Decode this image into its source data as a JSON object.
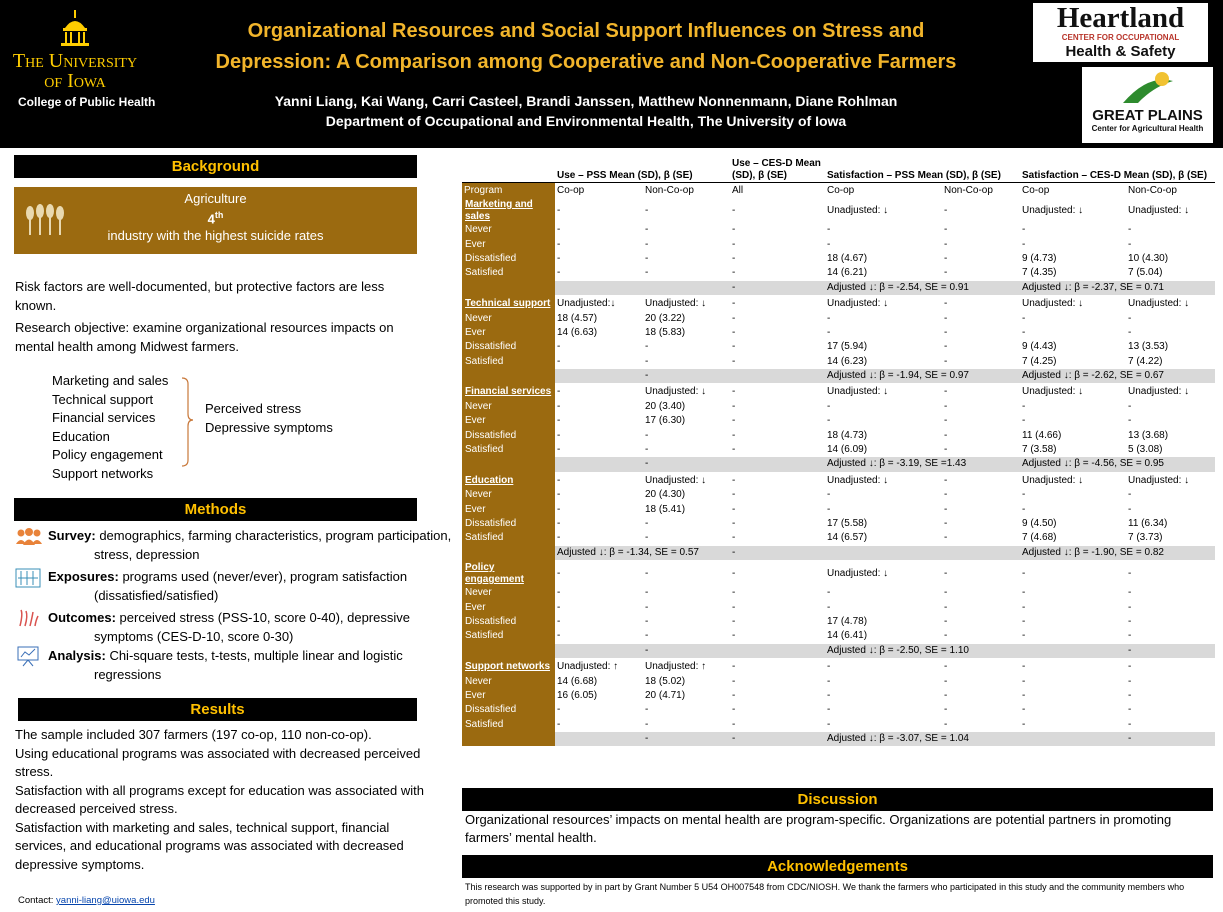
{
  "header": {
    "university_line1": "The University",
    "university_line2": "of Iowa",
    "college": "College of Public Health",
    "title_lines": [
      "Organizational Resources and Social Support Influences on Stress and",
      "Depression: A Comparison among Cooperative and Non-Cooperative Farmers"
    ],
    "authors": "Yanni Liang, Kai Wang, Carri Casteel, Brandi Janssen, Matthew Nonnenmann, Diane Rohlman",
    "affiliation": "Department of Occupational and Environmental Health, The University of Iowa",
    "heartland": {
      "name": "Heartland",
      "subtitle": "CENTER FOR OCCUPATIONAL",
      "tagline": "Health & Safety"
    },
    "great_plains": {
      "name": "GREAT PLAINS",
      "subtitle": "Center for Agricultural Health"
    }
  },
  "background": {
    "heading": "Background",
    "sector": "Agriculture",
    "rank": "4",
    "rank_suffix": "th",
    "fact": "industry with the highest suicide rates",
    "paragraphs": [
      "Risk factors are well-documented, but protective factors are less known.",
      "Research objective: examine organizational resources impacts on mental health among Midwest farmers."
    ],
    "exposures": [
      "Marketing and sales",
      "Technical support",
      "Financial services",
      "Education",
      "Policy engagement",
      "Support networks"
    ],
    "outcomes": [
      "Perceived stress",
      "Depressive symptoms"
    ]
  },
  "methods": {
    "heading": "Methods",
    "items": [
      {
        "label": "Survey:",
        "text": "demographics, farming characteristics, program participation, stress, depression"
      },
      {
        "label": "Exposures:",
        "text": "programs used (never/ever), program satisfaction (dissatisfied/satisfied)"
      },
      {
        "label": "Outcomes:",
        "text": "perceived stress (PSS-10, score 0-40), depressive symptoms (CES-D-10, score 0-30)"
      },
      {
        "label": "Analysis:",
        "text": "Chi-square tests, t-tests, multiple linear and logistic regressions"
      }
    ]
  },
  "results": {
    "heading": "Results",
    "paragraphs": [
      "The sample included 307 farmers (197 co-op, 110 non-co-op).",
      "Using educational programs was associated with decreased perceived stress.",
      "Satisfaction with all programs except for education was associated with decreased perceived stress.",
      "Satisfaction with marketing and sales, technical support, financial services, and educational programs was associated with decreased depressive symptoms."
    ]
  },
  "contact": {
    "label": "Contact:",
    "email": "yanni-liang@uiowa.edu"
  },
  "table": {
    "group_headers": [
      "Use – PSS Mean (SD), β (SE)",
      "Use – CES-D Mean (SD), β (SE)",
      "Satisfaction – PSS Mean (SD), β (SE)",
      "Satisfaction – CES-D Mean (SD), β (SE)"
    ],
    "columns": [
      "Program",
      "Co-op",
      "Non-Co-op",
      "All",
      "Co-op",
      "Non-Co-op",
      "Co-op",
      "Non-Co-op"
    ],
    "sections": [
      {
        "rows": [
          [
            "Marketing and sales",
            "-",
            "-",
            "-",
            "Unadjusted: ↓",
            "-",
            "Unadjusted: ↓",
            "Unadjusted: ↓"
          ],
          [
            "Never",
            "-",
            "-",
            "-",
            "-",
            "-",
            "-",
            "-"
          ],
          [
            "Ever",
            "-",
            "-",
            "-",
            "-",
            "-",
            "-",
            "-"
          ],
          [
            "Dissatisfied",
            "-",
            "-",
            "-",
            "18 (4.67)",
            "-",
            "9 (4.73)",
            "10 (4.30)"
          ],
          [
            "Satisfied",
            "-",
            "-",
            "-",
            "14 (6.21)",
            "-",
            "7 (4.35)",
            "7 (5.04)"
          ],
          [
            null,
            null,
            null,
            "-",
            "Adjusted ↓: β = -2.54, SE = 0.91",
            null,
            "Adjusted ↓: β = -2.37, SE = 0.71",
            null
          ]
        ]
      },
      {
        "rows": [
          [
            "Technical support",
            "Unadjusted:↓",
            "Unadjusted: ↓",
            "-",
            "Unadjusted: ↓",
            "-",
            "Unadjusted: ↓",
            "Unadjusted: ↓"
          ],
          [
            "Never",
            "18 (4.57)",
            "20 (3.22)",
            "-",
            "-",
            "-",
            "-",
            "-"
          ],
          [
            "Ever",
            "14 (6.63)",
            "18 (5.83)",
            "-",
            "-",
            "-",
            "-",
            "-"
          ],
          [
            "Dissatisfied",
            "-",
            "-",
            "-",
            "17 (5.94)",
            "-",
            "9 (4.43)",
            "13 (3.53)"
          ],
          [
            "Satisfied",
            "-",
            "-",
            "-",
            "14 (6.23)",
            "-",
            "7 (4.25)",
            "7 (4.22)"
          ],
          [
            null,
            null,
            "-",
            null,
            "Adjusted ↓: β = -1.94, SE = 0.97",
            null,
            "Adjusted ↓: β = -2.62, SE = 0.67",
            null
          ]
        ]
      },
      {
        "rows": [
          [
            "Financial services",
            "-",
            "Unadjusted: ↓",
            "-",
            "Unadjusted: ↓",
            "-",
            "Unadjusted: ↓",
            "Unadjusted: ↓"
          ],
          [
            "Never",
            "-",
            "20 (3.40)",
            "-",
            "-",
            "-",
            "-",
            "-"
          ],
          [
            "Ever",
            "-",
            "17 (6.30)",
            "-",
            "-",
            "-",
            "-",
            "-"
          ],
          [
            "Dissatisfied",
            "-",
            "-",
            "-",
            "18 (4.73)",
            "-",
            "11 (4.66)",
            "13 (3.68)"
          ],
          [
            "Satisfied",
            "-",
            "-",
            "-",
            "14 (6.09)",
            "-",
            "7 (3.58)",
            "5 (3.08)"
          ],
          [
            null,
            null,
            "-",
            null,
            "Adjusted ↓: β = -3.19, SE =1.43",
            null,
            "Adjusted ↓: β = -4.56, SE = 0.95",
            null
          ]
        ]
      },
      {
        "rows": [
          [
            "Education",
            "-",
            "Unadjusted: ↓",
            "-",
            "Unadjusted: ↓",
            "-",
            "Unadjusted: ↓",
            "Unadjusted: ↓"
          ],
          [
            "Never",
            "-",
            "20 (4.30)",
            "-",
            "-",
            "-",
            "-",
            "-"
          ],
          [
            "Ever",
            "-",
            "18 (5.41)",
            "-",
            "-",
            "-",
            "-",
            "-"
          ],
          [
            "Dissatisfied",
            "-",
            "-",
            "-",
            "17 (5.58)",
            "-",
            "9 (4.50)",
            "11 (6.34)"
          ],
          [
            "Satisfied",
            "-",
            "-",
            "-",
            "14 (6.57)",
            "-",
            "7 (4.68)",
            "7 (3.73)"
          ],
          [
            null,
            "Adjusted ↓: β = -1.34, SE = 0.57",
            null,
            "-",
            null,
            null,
            "Adjusted ↓: β = -1.90, SE = 0.82",
            null
          ]
        ]
      },
      {
        "rows": [
          [
            "Policy engagement",
            "-",
            "-",
            "-",
            "Unadjusted: ↓",
            "-",
            "-",
            "-"
          ],
          [
            "Never",
            "-",
            "-",
            "-",
            "-",
            "-",
            "-",
            "-"
          ],
          [
            "Ever",
            "-",
            "-",
            "-",
            "-",
            "-",
            "-",
            "-"
          ],
          [
            "Dissatisfied",
            "-",
            "-",
            "-",
            "17 (4.78)",
            "-",
            "-",
            "-"
          ],
          [
            "Satisfied",
            "-",
            "-",
            "-",
            "14 (6.41)",
            "-",
            "-",
            "-"
          ],
          [
            null,
            null,
            "-",
            null,
            "Adjusted ↓: β = -2.50, SE = 1.10",
            null,
            null,
            "-"
          ]
        ]
      },
      {
        "rows": [
          [
            "Support networks",
            "Unadjusted: ↑",
            "Unadjusted: ↑",
            "-",
            "-",
            "-",
            "-",
            "-"
          ],
          [
            "Never",
            "14 (6.68)",
            "18 (5.02)",
            "-",
            "-",
            "-",
            "-",
            "-"
          ],
          [
            "Ever",
            "16 (6.05)",
            "20 (4.71)",
            "-",
            "-",
            "-",
            "-",
            "-"
          ],
          [
            "Dissatisfied",
            "-",
            "-",
            "-",
            "-",
            "-",
            "-",
            "-"
          ],
          [
            "Satisfied",
            "-",
            "-",
            "-",
            "-",
            "-",
            "-",
            "-"
          ],
          [
            null,
            null,
            "-",
            "-",
            "Adjusted ↓: β = -3.07, SE = 1.04",
            null,
            null,
            "-"
          ]
        ]
      }
    ]
  },
  "discussion": {
    "heading": "Discussion",
    "text": "Organizational resources’ impacts on mental health are program-specific. Organizations are potential partners in promoting farmers’ mental health."
  },
  "acknowledgements": {
    "heading": "Acknowledgements",
    "text": "This research was supported by in part by Grant Number 5 U54 OH007548 from CDC/NIOSH. We thank the farmers who participated in this study and the community members who promoted this study."
  }
}
